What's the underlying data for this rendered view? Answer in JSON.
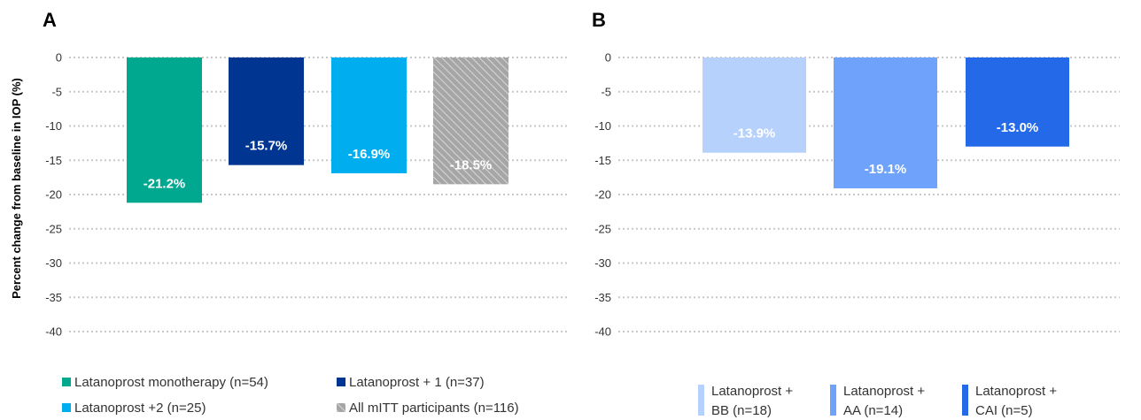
{
  "ylabel": "Percent change from baseline in IOP (%)",
  "chart_data": [
    {
      "type": "bar",
      "panel": "A",
      "ylim": [
        -40,
        0
      ],
      "yticks": [
        0,
        -5,
        -10,
        -15,
        -20,
        -25,
        -30,
        -35,
        -40
      ],
      "grid": true,
      "legend_position": "bottom",
      "series": [
        {
          "name": "Latanoprost monotherapy (n=54)",
          "value": -21.2,
          "label": "-21.2%",
          "color": "#00a88f",
          "pattern": "solid"
        },
        {
          "name": "Latanoprost + 1 (n=37)",
          "value": -15.7,
          "label": "-15.7%",
          "color": "#003591",
          "pattern": "solid"
        },
        {
          "name": "Latanoprost +2 (n=25)",
          "value": -16.9,
          "label": "-16.9%",
          "color": "#00aeef",
          "pattern": "solid"
        },
        {
          "name": "All mITT participants (n=116)",
          "value": -18.5,
          "label": "-18.5%",
          "color": "#a6a6a6",
          "pattern": "hatched"
        }
      ]
    },
    {
      "type": "bar",
      "panel": "B",
      "ylim": [
        -40,
        0
      ],
      "yticks": [
        0,
        -5,
        -10,
        -15,
        -20,
        -25,
        -30,
        -35,
        -40
      ],
      "grid": true,
      "legend_position": "bottom",
      "series": [
        {
          "name": "Latanoprost + BB (n=18)",
          "name_lines": [
            "Latanoprost +",
            "BB (n=18)"
          ],
          "value": -13.9,
          "label": "-13.9%",
          "color": "#b5d1fc",
          "pattern": "solid"
        },
        {
          "name": "Latanoprost + AA (n=14)",
          "name_lines": [
            "Latanoprost +",
            "AA (n=14)"
          ],
          "value": -19.1,
          "label": "-19.1%",
          "color": "#6ea2fb",
          "pattern": "solid"
        },
        {
          "name": "Latanoprost + CAI (n=5)",
          "name_lines": [
            "Latanoprost +",
            "CAI (n=5)"
          ],
          "value": -13.0,
          "label": "-13.0%",
          "color": "#2369e8",
          "pattern": "solid"
        }
      ]
    }
  ]
}
